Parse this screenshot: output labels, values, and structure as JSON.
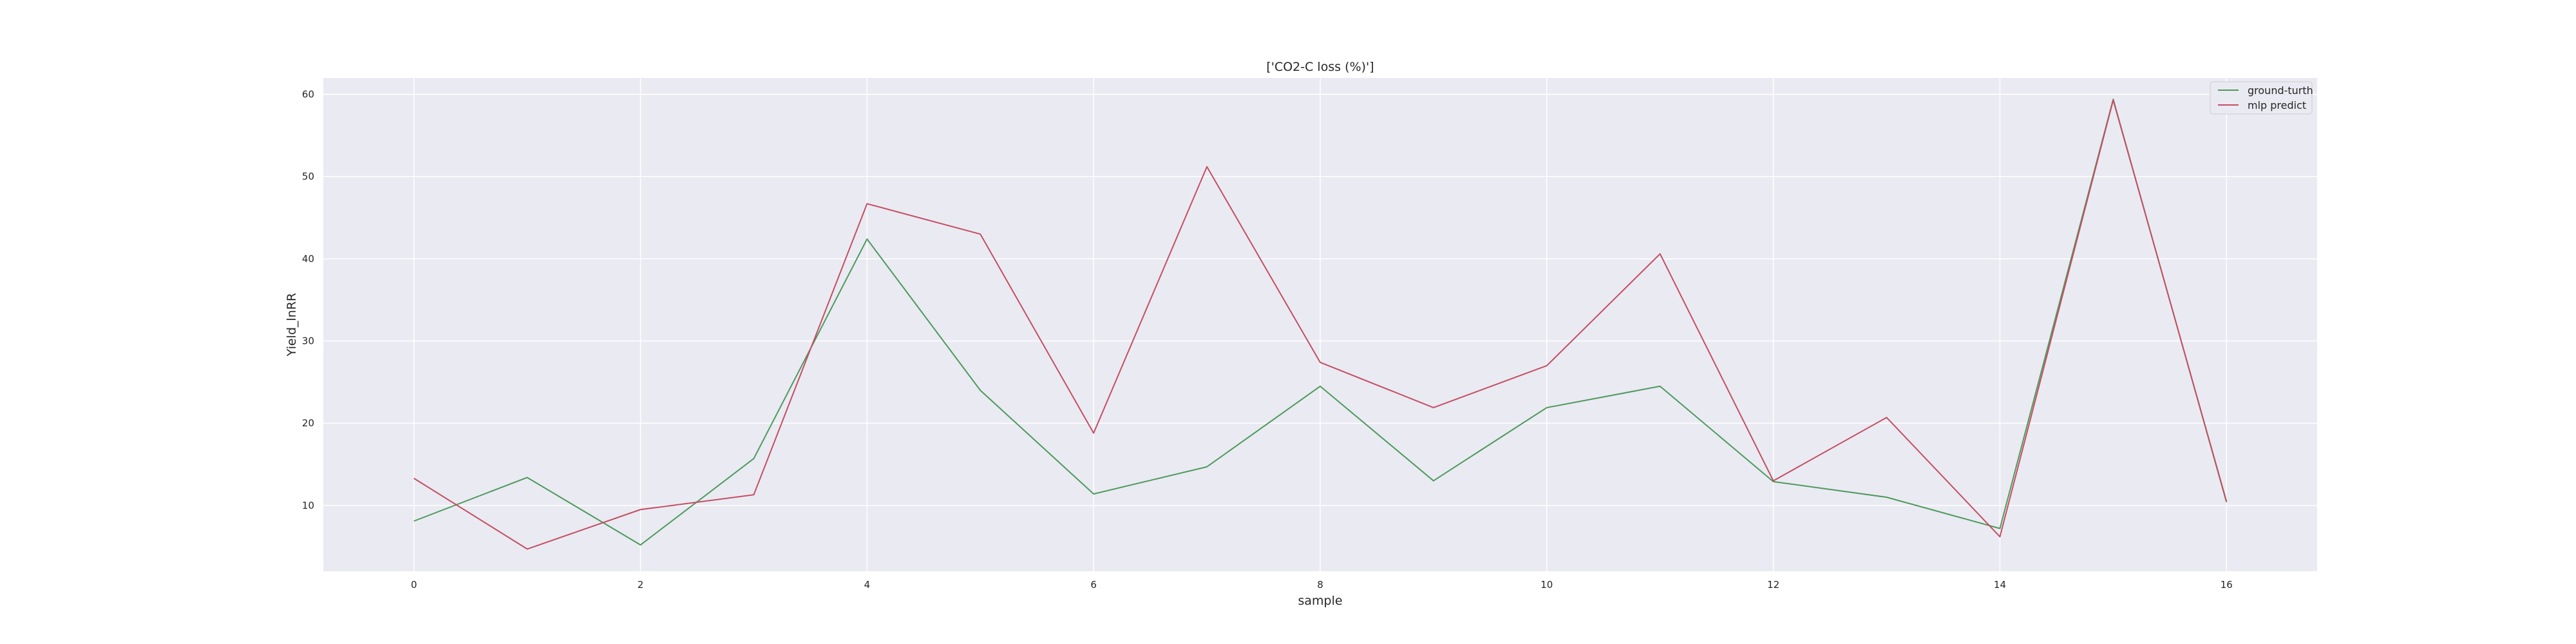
{
  "chart_data": {
    "type": "line",
    "title": "['CO2-C loss (%)']",
    "xlabel": "sample",
    "ylabel": "Yield_lnRR",
    "x": [
      0,
      1,
      2,
      3,
      4,
      5,
      6,
      7,
      8,
      9,
      10,
      11,
      12,
      13,
      14,
      15,
      16
    ],
    "xlim": [
      -0.8,
      16.8
    ],
    "ylim": [
      2,
      62
    ],
    "x_ticks": [
      0,
      2,
      4,
      6,
      8,
      10,
      12,
      14,
      16
    ],
    "y_ticks": [
      10,
      20,
      30,
      40,
      50,
      60
    ],
    "grid": true,
    "legend_position": "top-right",
    "background": "#eaeaf2",
    "series": [
      {
        "name": "ground-turth",
        "color": "#4c9a5c",
        "values": [
          8.1,
          13.4,
          5.2,
          15.7,
          42.4,
          24.0,
          11.4,
          14.7,
          24.5,
          13.0,
          21.9,
          24.5,
          12.9,
          11.0,
          7.2,
          59.4,
          10.4
        ]
      },
      {
        "name": "mlp predict",
        "color": "#c44e62",
        "values": [
          13.3,
          4.7,
          9.5,
          11.3,
          46.7,
          43.0,
          18.8,
          51.2,
          27.4,
          21.9,
          27.0,
          40.6,
          13.0,
          20.7,
          6.2,
          59.3,
          10.5
        ]
      }
    ]
  }
}
